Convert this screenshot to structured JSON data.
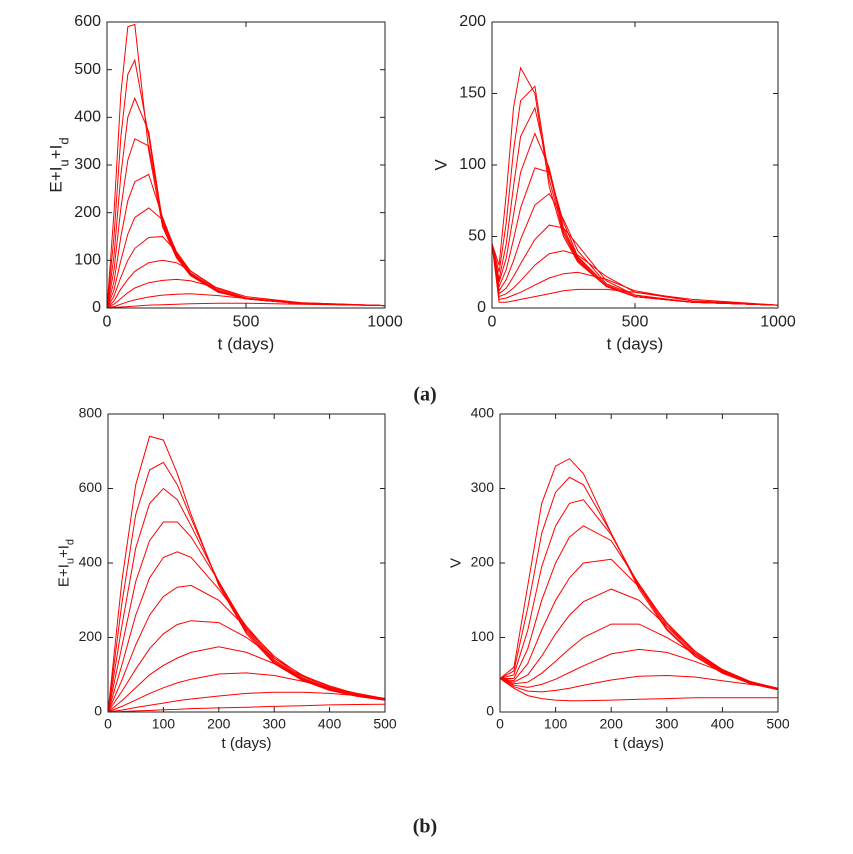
{
  "figure_labels": [
    "(a)",
    "(b)"
  ],
  "chart_data": [
    {
      "type": "line",
      "xlabel": "t (days)",
      "ylabel": [
        "E+I",
        "u",
        "+I",
        "d"
      ],
      "color": "#ff0000",
      "xlim": [
        0,
        1000
      ],
      "xticks": [
        0,
        500,
        1000
      ],
      "ylim": [
        0,
        600
      ],
      "yticks": [
        0,
        100,
        200,
        300,
        400,
        500,
        600
      ],
      "x": [
        0,
        25,
        50,
        75,
        100,
        150,
        200,
        250,
        300,
        400,
        500,
        700,
        1000
      ],
      "series": [
        {
          "values": [
            0,
            200,
            450,
            590,
            595,
            330,
            170,
            105,
            68,
            33,
            19,
            9,
            5
          ]
        },
        {
          "values": [
            0,
            150,
            360,
            490,
            520,
            360,
            175,
            108,
            69,
            34,
            19,
            9,
            5
          ]
        },
        {
          "values": [
            0,
            110,
            280,
            400,
            440,
            370,
            180,
            110,
            70,
            34,
            19,
            9,
            5
          ]
        },
        {
          "values": [
            0,
            80,
            210,
            310,
            355,
            340,
            185,
            112,
            71,
            34,
            19,
            9,
            5
          ]
        },
        {
          "values": [
            0,
            55,
            150,
            225,
            265,
            280,
            190,
            115,
            72,
            35,
            20,
            9,
            5
          ]
        },
        {
          "values": [
            0,
            38,
            100,
            155,
            190,
            210,
            185,
            118,
            74,
            35,
            20,
            9,
            5
          ]
        },
        {
          "values": [
            0,
            25,
            65,
            100,
            125,
            148,
            150,
            118,
            78,
            37,
            20,
            10,
            5
          ]
        },
        {
          "values": [
            0,
            15,
            40,
            60,
            77,
            95,
            100,
            95,
            78,
            40,
            21,
            10,
            5
          ]
        },
        {
          "values": [
            0,
            8,
            20,
            32,
            42,
            53,
            58,
            60,
            57,
            42,
            24,
            11,
            5
          ]
        },
        {
          "values": [
            0,
            3,
            8,
            13,
            17,
            23,
            27,
            29,
            30,
            26,
            20,
            11,
            5
          ]
        },
        {
          "values": [
            0,
            1,
            2,
            3,
            4,
            6,
            7,
            8,
            9,
            10,
            10,
            8,
            5
          ]
        }
      ]
    },
    {
      "type": "line",
      "xlabel": "t (days)",
      "ylabel": [
        "V"
      ],
      "color": "#ff0000",
      "xlim": [
        0,
        1000
      ],
      "xticks": [
        0,
        500,
        1000
      ],
      "ylim": [
        0,
        200
      ],
      "yticks": [
        0,
        50,
        100,
        150,
        200
      ],
      "x": [
        0,
        25,
        50,
        75,
        100,
        150,
        200,
        250,
        300,
        400,
        500,
        700,
        1000
      ],
      "series": [
        {
          "values": [
            45,
            30,
            80,
            140,
            168,
            150,
            85,
            50,
            32,
            15,
            8,
            4,
            2
          ]
        },
        {
          "values": [
            45,
            25,
            60,
            110,
            145,
            155,
            90,
            52,
            33,
            15,
            8,
            4,
            2
          ]
        },
        {
          "values": [
            45,
            20,
            45,
            85,
            120,
            140,
            95,
            54,
            34,
            15,
            8,
            4,
            2
          ]
        },
        {
          "values": [
            45,
            18,
            35,
            65,
            95,
            122,
            98,
            56,
            35,
            16,
            8,
            4,
            2
          ]
        },
        {
          "values": [
            45,
            15,
            27,
            48,
            70,
            98,
            95,
            60,
            36,
            16,
            8,
            4,
            2
          ]
        },
        {
          "values": [
            45,
            12,
            20,
            33,
            48,
            72,
            80,
            62,
            40,
            17,
            9,
            4,
            2
          ]
        },
        {
          "values": [
            45,
            10,
            14,
            22,
            31,
            48,
            58,
            56,
            44,
            19,
            9,
            4,
            2
          ]
        },
        {
          "values": [
            45,
            8,
            10,
            14,
            19,
            30,
            38,
            40,
            37,
            22,
            11,
            5,
            2
          ]
        },
        {
          "values": [
            45,
            6,
            7,
            9,
            11,
            16,
            21,
            24,
            25,
            20,
            12,
            5,
            2
          ]
        },
        {
          "values": [
            45,
            4,
            4,
            5,
            6,
            8,
            10,
            12,
            13,
            13,
            11,
            6,
            2
          ]
        }
      ]
    },
    {
      "type": "line",
      "xlabel": "t (days)",
      "ylabel": [
        "E+I",
        "u",
        "+I",
        "d"
      ],
      "color": "#ff0000",
      "xlim": [
        0,
        500
      ],
      "xticks": [
        0,
        100,
        200,
        300,
        400,
        500
      ],
      "ylim": [
        0,
        800
      ],
      "yticks": [
        0,
        200,
        400,
        600,
        800
      ],
      "x": [
        0,
        25,
        50,
        75,
        100,
        125,
        150,
        200,
        250,
        300,
        350,
        400,
        450,
        500
      ],
      "series": [
        {
          "values": [
            0,
            350,
            610,
            740,
            730,
            640,
            530,
            340,
            210,
            130,
            85,
            58,
            42,
            32
          ]
        },
        {
          "values": [
            0,
            290,
            530,
            650,
            670,
            610,
            520,
            345,
            215,
            133,
            87,
            59,
            42,
            32
          ]
        },
        {
          "values": [
            0,
            230,
            440,
            560,
            600,
            570,
            500,
            350,
            220,
            136,
            88,
            60,
            43,
            32
          ]
        },
        {
          "values": [
            0,
            175,
            350,
            460,
            510,
            510,
            470,
            350,
            225,
            140,
            90,
            61,
            43,
            32
          ]
        },
        {
          "values": [
            0,
            125,
            260,
            360,
            415,
            430,
            415,
            330,
            230,
            145,
            93,
            62,
            44,
            33
          ]
        },
        {
          "values": [
            0,
            85,
            180,
            260,
            310,
            335,
            340,
            300,
            225,
            150,
            97,
            64,
            45,
            33
          ]
        },
        {
          "values": [
            0,
            55,
            115,
            170,
            210,
            235,
            245,
            240,
            200,
            145,
            100,
            67,
            46,
            33
          ]
        },
        {
          "values": [
            0,
            30,
            65,
            100,
            125,
            145,
            160,
            175,
            160,
            130,
            98,
            70,
            48,
            34
          ]
        },
        {
          "values": [
            0,
            15,
            32,
            50,
            65,
            78,
            88,
            102,
            105,
            98,
            83,
            66,
            50,
            36
          ]
        },
        {
          "values": [
            0,
            5,
            12,
            18,
            24,
            30,
            35,
            43,
            50,
            53,
            53,
            50,
            44,
            37
          ]
        },
        {
          "values": [
            0,
            1,
            3,
            4,
            6,
            7,
            9,
            11,
            13,
            15,
            17,
            19,
            20,
            21
          ]
        }
      ]
    },
    {
      "type": "line",
      "xlabel": "t (days)",
      "ylabel": [
        "V"
      ],
      "color": "#ff0000",
      "xlim": [
        0,
        500
      ],
      "xticks": [
        0,
        100,
        200,
        300,
        400,
        500
      ],
      "ylim": [
        0,
        400
      ],
      "yticks": [
        0,
        100,
        200,
        300,
        400
      ],
      "x": [
        0,
        25,
        50,
        75,
        100,
        125,
        150,
        200,
        250,
        300,
        350,
        400,
        450,
        500
      ],
      "series": [
        {
          "values": [
            45,
            60,
            170,
            280,
            330,
            340,
            320,
            240,
            165,
            110,
            75,
            52,
            38,
            30
          ]
        },
        {
          "values": [
            45,
            55,
            140,
            240,
            295,
            315,
            305,
            240,
            168,
            112,
            76,
            53,
            38,
            30
          ]
        },
        {
          "values": [
            45,
            50,
            110,
            195,
            250,
            280,
            285,
            238,
            170,
            115,
            78,
            54,
            39,
            30
          ]
        },
        {
          "values": [
            45,
            45,
            85,
            150,
            200,
            235,
            250,
            230,
            172,
            118,
            80,
            55,
            39,
            30
          ]
        },
        {
          "values": [
            45,
            42,
            65,
            110,
            150,
            180,
            200,
            205,
            168,
            120,
            82,
            56,
            40,
            30
          ]
        },
        {
          "values": [
            45,
            40,
            50,
            75,
            105,
            130,
            148,
            165,
            150,
            115,
            82,
            57,
            40,
            31
          ]
        },
        {
          "values": [
            45,
            38,
            40,
            52,
            68,
            85,
            100,
            118,
            118,
            100,
            78,
            57,
            41,
            31
          ]
        },
        {
          "values": [
            45,
            36,
            33,
            37,
            44,
            53,
            62,
            78,
            84,
            80,
            68,
            54,
            41,
            32
          ]
        },
        {
          "values": [
            45,
            34,
            28,
            27,
            29,
            32,
            36,
            43,
            48,
            49,
            47,
            42,
            37,
            32
          ]
        },
        {
          "values": [
            45,
            32,
            22,
            18,
            16,
            15,
            15,
            16,
            17,
            18,
            19,
            19,
            19,
            19
          ]
        }
      ]
    }
  ]
}
